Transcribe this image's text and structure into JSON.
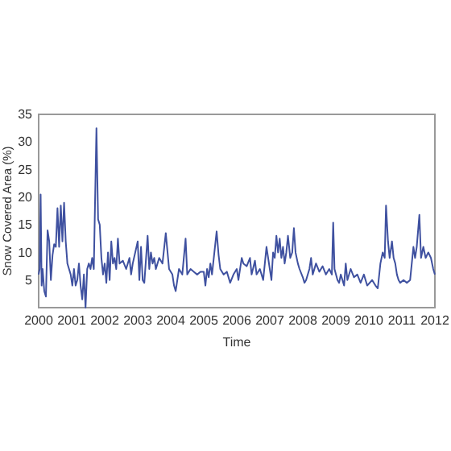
{
  "chart_data": {
    "type": "line",
    "xlabel": "Time",
    "ylabel": "Snow Covered Area (%)",
    "xlim": [
      2000,
      2012
    ],
    "xticks": [
      2000,
      2001,
      2002,
      2003,
      2004,
      2005,
      2006,
      2007,
      2008,
      2009,
      2010,
      2011,
      2012
    ],
    "ylim": [
      0,
      35
    ],
    "yticks": [
      5,
      10,
      15,
      20,
      25,
      30,
      35
    ],
    "grid": false,
    "marker": "none",
    "line_style": "solid",
    "series": [
      {
        "color": "#3f51a0",
        "x": [
          2000.0,
          2000.03,
          2000.06,
          2000.09,
          2000.12,
          2000.17,
          2000.22,
          2000.27,
          2000.32,
          2000.37,
          2000.42,
          2000.47,
          2000.52,
          2000.57,
          2000.62,
          2000.67,
          2000.72,
          2000.77,
          2000.82,
          2000.87,
          2000.92,
          2000.97,
          2001.02,
          2001.07,
          2001.12,
          2001.17,
          2001.22,
          2001.27,
          2001.32,
          2001.37,
          2001.42,
          2001.47,
          2001.52,
          2001.57,
          2001.62,
          2001.67,
          2001.75,
          2001.8,
          2001.85,
          2001.9,
          2001.95,
          2002.0,
          2002.05,
          2002.1,
          2002.15,
          2002.2,
          2002.25,
          2002.3,
          2002.35,
          2002.4,
          2002.45,
          2002.55,
          2002.65,
          2002.75,
          2002.8,
          2002.85,
          2003.0,
          2003.05,
          2003.1,
          2003.15,
          2003.2,
          2003.3,
          2003.35,
          2003.4,
          2003.45,
          2003.5,
          2003.55,
          2003.65,
          2003.75,
          2003.85,
          2003.95,
          2004.05,
          2004.1,
          2004.15,
          2004.25,
          2004.35,
          2004.45,
          2004.5,
          2004.6,
          2004.7,
          2004.8,
          2004.9,
          2005.0,
          2005.05,
          2005.1,
          2005.15,
          2005.2,
          2005.25,
          2005.39,
          2005.45,
          2005.5,
          2005.6,
          2005.7,
          2005.8,
          2005.9,
          2006.0,
          2006.05,
          2006.15,
          2006.2,
          2006.3,
          2006.4,
          2006.45,
          2006.55,
          2006.6,
          2006.7,
          2006.8,
          2006.9,
          2007.0,
          2007.05,
          2007.1,
          2007.15,
          2007.2,
          2007.25,
          2007.3,
          2007.35,
          2007.4,
          2007.45,
          2007.5,
          2007.55,
          2007.62,
          2007.68,
          2007.73,
          2007.78,
          2007.85,
          2007.9,
          2008.0,
          2008.05,
          2008.1,
          2008.2,
          2008.25,
          2008.3,
          2008.4,
          2008.5,
          2008.6,
          2008.7,
          2008.8,
          2008.88,
          2008.92,
          2008.96,
          2009.05,
          2009.1,
          2009.15,
          2009.25,
          2009.3,
          2009.35,
          2009.45,
          2009.55,
          2009.65,
          2009.75,
          2009.85,
          2009.95,
          2010.1,
          2010.2,
          2010.27,
          2010.35,
          2010.42,
          2010.48,
          2010.52,
          2010.58,
          2010.63,
          2010.7,
          2010.75,
          2010.8,
          2010.85,
          2010.9,
          2010.95,
          2011.05,
          2011.15,
          2011.25,
          2011.35,
          2011.4,
          2011.45,
          2011.53,
          2011.58,
          2011.65,
          2011.72,
          2011.8,
          2011.88,
          2011.95,
          2012.0
        ],
        "values": [
          6,
          7,
          20.5,
          4,
          7,
          3,
          2,
          14,
          12,
          5,
          9.5,
          11.5,
          11,
          18,
          11,
          18.5,
          12,
          19,
          12,
          8,
          7,
          6,
          4,
          7,
          4,
          5,
          8,
          4,
          1.5,
          6,
          0,
          7,
          8,
          7,
          9,
          7,
          32.5,
          16,
          15,
          9,
          6,
          8,
          4.5,
          10,
          5,
          12,
          8,
          9,
          7,
          12.5,
          8,
          8.5,
          7,
          9,
          6,
          8,
          12,
          5,
          11,
          5,
          4.5,
          13,
          7,
          10,
          8,
          9,
          7,
          9,
          8,
          13.5,
          7,
          6,
          4,
          3,
          7,
          6,
          12.5,
          6,
          7,
          6.5,
          6,
          6.5,
          6.5,
          4,
          7,
          5.5,
          8,
          6,
          13.8,
          9.5,
          7,
          6,
          6.5,
          4.5,
          6,
          7,
          5,
          9,
          8,
          7.5,
          9,
          6,
          8.5,
          6,
          7,
          5,
          11,
          7,
          5,
          10,
          9,
          13,
          10,
          12.5,
          9,
          11,
          8,
          10,
          13,
          9,
          10,
          14.4,
          10,
          8,
          7,
          5.5,
          4.5,
          5,
          7,
          9,
          6,
          8,
          6.5,
          7.5,
          6,
          7,
          6,
          15.4,
          7,
          5,
          4.5,
          6,
          4,
          8,
          5,
          7,
          5.5,
          6,
          4.5,
          6,
          4,
          5,
          4,
          3.5,
          8,
          10,
          9,
          18.5,
          12,
          9,
          12,
          9,
          8,
          6,
          5,
          4.5,
          5,
          4.5,
          5,
          11,
          9,
          11,
          16.8,
          9,
          11,
          9,
          10,
          9,
          7,
          6
        ]
      }
    ]
  }
}
